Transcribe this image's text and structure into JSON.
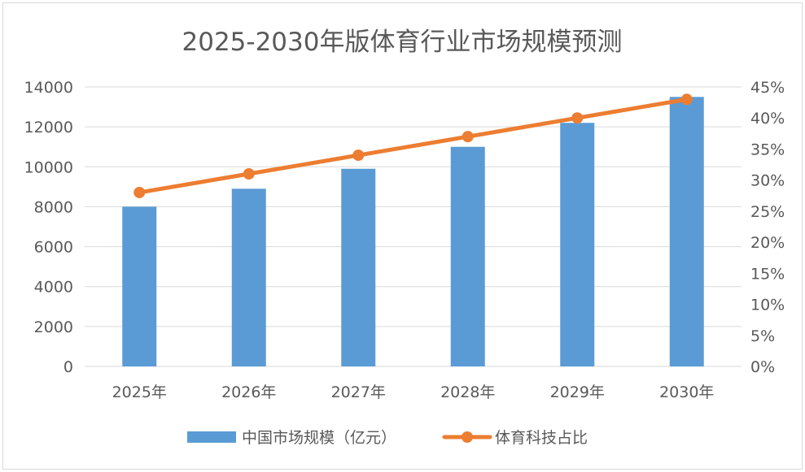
{
  "chart_data": {
    "type": "bar",
    "title": "2025-2030年版体育行业市场规模预测",
    "categories": [
      "2025年",
      "2026年",
      "2027年",
      "2028年",
      "2029年",
      "2030年"
    ],
    "series": [
      {
        "name": "中国市场规模（亿元）",
        "type": "bar",
        "axis": "left",
        "color": "#5b9bd5",
        "values": [
          8000,
          8900,
          9900,
          11000,
          12200,
          13500
        ]
      },
      {
        "name": "体育科技占比",
        "type": "line",
        "axis": "right",
        "color": "#ed7d31",
        "values": [
          28,
          31,
          34,
          37,
          40,
          43
        ]
      }
    ],
    "y_left": {
      "min": 0,
      "max": 14000,
      "step": 2000,
      "ticks": [
        "0",
        "2000",
        "4000",
        "6000",
        "8000",
        "10000",
        "12000",
        "14000"
      ]
    },
    "y_right": {
      "min": 0,
      "max": 45,
      "step": 5,
      "ticks": [
        "0%",
        "5%",
        "10%",
        "15%",
        "20%",
        "25%",
        "30%",
        "35%",
        "40%",
        "45%"
      ]
    },
    "grid": true,
    "legend_position": "bottom"
  }
}
